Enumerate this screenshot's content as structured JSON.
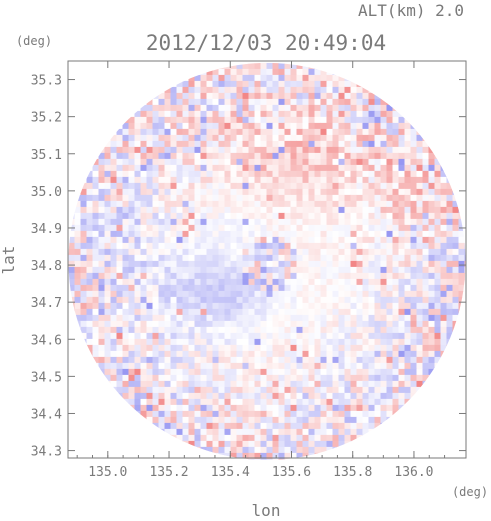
{
  "chart_data": {
    "type": "heatmap",
    "title": "2012/12/03 20:49:04",
    "altitude_label": "ALT(km) 2.0",
    "xlabel": "lon",
    "ylabel": "lat",
    "x_unit": "(deg)",
    "y_unit": "(deg)",
    "xlim": [
      134.87,
      136.17
    ],
    "ylim": [
      34.28,
      35.35
    ],
    "x_ticks": [
      "135.0",
      "135.2",
      "135.4",
      "135.6",
      "135.8",
      "136.0"
    ],
    "y_ticks": [
      "34.3",
      "34.4",
      "34.5",
      "34.6",
      "34.7",
      "34.8",
      "34.9",
      "35.0",
      "35.1",
      "35.2",
      "35.3"
    ],
    "radar_center": {
      "lon": 135.52,
      "lat": 34.81
    },
    "radar_radius_deg_lat": 0.535,
    "colors": {
      "positive": "#f07878",
      "negative": "#8a8af0",
      "neutral": "#ffffff",
      "axis": "#7a7a7a"
    },
    "features": [
      {
        "region": "north-center",
        "sign": "positive",
        "strength": 0.45
      },
      {
        "region": "center-west",
        "sign": "negative",
        "strength": 0.35
      },
      {
        "region": "west",
        "sign": "negative",
        "strength": 0.25
      },
      {
        "region": "south-center",
        "sign": "neutral",
        "strength": 0.1
      }
    ]
  }
}
